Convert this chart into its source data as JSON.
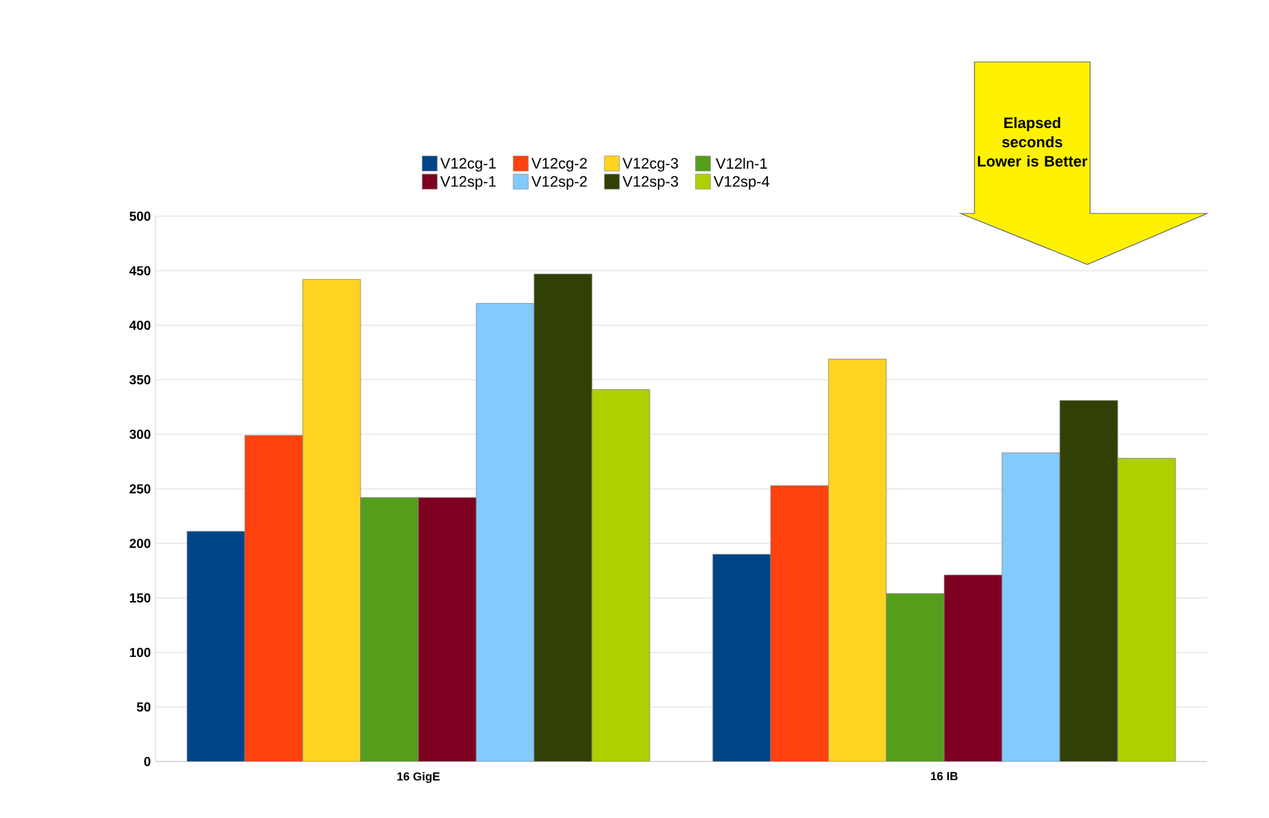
{
  "chart_data": {
    "type": "bar",
    "categories": [
      "16 GigE",
      "16 IB"
    ],
    "series": [
      {
        "name": "V12cg-1",
        "color": "#004586",
        "values": [
          211,
          190
        ]
      },
      {
        "name": "V12cg-2",
        "color": "#ff420e",
        "values": [
          299,
          253
        ]
      },
      {
        "name": "V12cg-3",
        "color": "#ffd320",
        "values": [
          442,
          369
        ]
      },
      {
        "name": "V12ln-1",
        "color": "#579d1c",
        "values": [
          242,
          154
        ]
      },
      {
        "name": "V12sp-1",
        "color": "#7e0021",
        "values": [
          242,
          171
        ]
      },
      {
        "name": "V12sp-2",
        "color": "#83caff",
        "values": [
          420,
          283
        ]
      },
      {
        "name": "V12sp-3",
        "color": "#314004",
        "values": [
          447,
          331
        ]
      },
      {
        "name": "V12sp-4",
        "color": "#aecf00",
        "values": [
          341,
          278
        ]
      }
    ],
    "ylim": [
      0,
      500
    ],
    "yticks": [
      0,
      50,
      100,
      150,
      200,
      250,
      300,
      350,
      400,
      450,
      500
    ],
    "grid": "y",
    "legend": "top",
    "annotations": [
      "Elapsed seconds Lower is Better"
    ]
  }
}
